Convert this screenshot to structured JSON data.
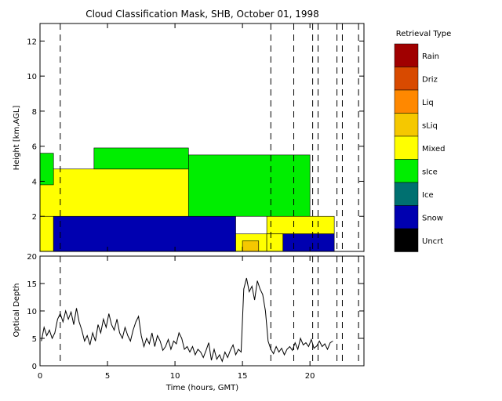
{
  "chart_data": [
    {
      "type": "heatmap",
      "title": "Cloud Classification Mask, SHB, October 01, 1998",
      "xlabel": "",
      "ylabel": "Height [km,AGL]",
      "xlim": [
        0,
        24
      ],
      "ylim": [
        0,
        13
      ],
      "xticks": [
        0,
        5,
        10,
        15,
        20
      ],
      "yticks": [
        2,
        4,
        6,
        8,
        10,
        12
      ],
      "ytick_labels": [
        "2",
        "4",
        "6",
        "8",
        "10",
        "12"
      ],
      "dashed_time_markers": [
        1.5,
        17.1,
        18.8,
        20.2,
        20.6,
        22.0,
        22.4,
        23.6
      ],
      "legend": {
        "title": "Retrieval Type",
        "placement": "right",
        "items": [
          {
            "label": "Rain",
            "color": "#a00000"
          },
          {
            "label": "Driz",
            "color": "#d84a00"
          },
          {
            "label": "Liq",
            "color": "#ff8800"
          },
          {
            "label": "sLiq",
            "color": "#f5c800"
          },
          {
            "label": "Mixed",
            "color": "#ffff00"
          },
          {
            "label": "sIce",
            "color": "#00ee00"
          },
          {
            "label": "Ice",
            "color": "#007070"
          },
          {
            "label": "Snow",
            "color": "#0000b0"
          },
          {
            "label": "Uncrt",
            "color": "#000000"
          }
        ]
      },
      "regions": [
        {
          "type": "Mixed",
          "x": [
            0.0,
            1.0
          ],
          "y": [
            0.0,
            2.0
          ]
        },
        {
          "type": "Snow",
          "x": [
            1.0,
            14.5
          ],
          "y": [
            0.0,
            2.0
          ]
        },
        {
          "type": "Mixed",
          "x": [
            14.5,
            16.8
          ],
          "y": [
            0.0,
            1.0
          ]
        },
        {
          "type": "sLiq",
          "x": [
            15.0,
            16.2
          ],
          "y": [
            0.0,
            0.6
          ]
        },
        {
          "type": "Mixed",
          "x": [
            16.8,
            21.8
          ],
          "y": [
            1.0,
            2.0
          ]
        },
        {
          "type": "Mixed",
          "x": [
            16.8,
            18.0
          ],
          "y": [
            0.0,
            1.0
          ]
        },
        {
          "type": "Snow",
          "x": [
            18.0,
            21.8
          ],
          "y": [
            0.0,
            1.0
          ]
        },
        {
          "type": "Mixed",
          "x": [
            0.0,
            11.0
          ],
          "y": [
            2.0,
            4.7
          ]
        },
        {
          "type": "sIce",
          "x": [
            11.0,
            20.0
          ],
          "y": [
            2.0,
            5.5
          ]
        },
        {
          "type": "sIce",
          "x": [
            0.0,
            1.0
          ],
          "y": [
            3.8,
            5.6
          ]
        },
        {
          "type": "sIce",
          "x": [
            4.0,
            11.0
          ],
          "y": [
            4.7,
            5.9
          ]
        }
      ]
    },
    {
      "type": "line",
      "title": "",
      "xlabel": "Time (hours, GMT)",
      "ylabel": "Optical Depth",
      "xlim": [
        0,
        24
      ],
      "ylim": [
        0,
        20
      ],
      "xticks": [
        0,
        5,
        10,
        15,
        20
      ],
      "yticks": [
        0,
        5,
        10,
        15,
        20
      ],
      "series": [
        {
          "x": [
            0.1,
            0.3,
            0.5,
            0.7,
            0.9,
            1.1,
            1.3,
            1.5,
            1.7,
            1.9,
            2.1,
            2.3,
            2.5,
            2.7,
            2.9,
            3.1,
            3.3,
            3.5,
            3.7,
            3.9,
            4.1,
            4.3,
            4.5,
            4.7,
            4.9,
            5.1,
            5.3,
            5.5,
            5.7,
            5.9,
            6.1,
            6.3,
            6.5,
            6.7,
            6.9,
            7.1,
            7.3,
            7.5,
            7.7,
            7.9,
            8.1,
            8.3,
            8.5,
            8.7,
            8.9,
            9.1,
            9.3,
            9.5,
            9.7,
            9.9,
            10.1,
            10.3,
            10.5,
            10.7,
            10.9,
            11.1,
            11.3,
            11.5,
            11.7,
            11.9,
            12.1,
            12.3,
            12.5,
            12.7,
            12.9,
            13.1,
            13.3,
            13.5,
            13.7,
            13.9,
            14.1,
            14.3,
            14.5,
            14.7,
            14.9,
            15.1,
            15.3,
            15.5,
            15.7,
            15.9,
            16.1,
            16.3,
            16.5,
            16.7,
            16.9,
            17.1,
            17.3,
            17.5,
            17.7,
            17.9,
            18.1,
            18.3,
            18.5,
            18.7,
            18.9,
            19.1,
            19.3,
            19.5,
            19.7,
            19.9,
            20.1,
            20.3,
            20.5,
            20.7,
            20.9,
            21.1,
            21.3,
            21.5,
            21.7
          ],
          "y": [
            4.5,
            7.0,
            5.5,
            6.5,
            5.0,
            6.0,
            8.5,
            9.5,
            8.0,
            10.0,
            8.5,
            9.8,
            7.5,
            10.5,
            8.0,
            6.5,
            4.5,
            5.5,
            3.8,
            6.0,
            4.5,
            7.5,
            6.0,
            8.5,
            7.0,
            9.5,
            7.5,
            6.5,
            8.5,
            6.0,
            5.0,
            7.0,
            5.5,
            4.5,
            6.5,
            8.0,
            9.0,
            5.5,
            3.5,
            5.0,
            4.0,
            6.0,
            3.5,
            5.5,
            4.5,
            2.8,
            3.5,
            4.8,
            3.0,
            4.5,
            4.0,
            6.0,
            5.0,
            3.0,
            3.5,
            2.5,
            3.5,
            2.0,
            3.0,
            2.5,
            1.5,
            2.8,
            4.2,
            1.0,
            3.0,
            1.2,
            2.0,
            0.8,
            2.5,
            1.5,
            2.8,
            3.8,
            2.0,
            3.0,
            2.5,
            14.0,
            16.0,
            13.5,
            14.5,
            12.0,
            15.5,
            14.0,
            13.0,
            10.0,
            4.5,
            3.0,
            2.2,
            3.5,
            2.5,
            3.2,
            2.0,
            3.0,
            3.5,
            2.8,
            4.2,
            3.0,
            5.0,
            3.8,
            4.2,
            3.5,
            4.8,
            3.2,
            3.6,
            4.5,
            3.5,
            4.0,
            3.0,
            4.2,
            4.5
          ]
        }
      ]
    }
  ]
}
